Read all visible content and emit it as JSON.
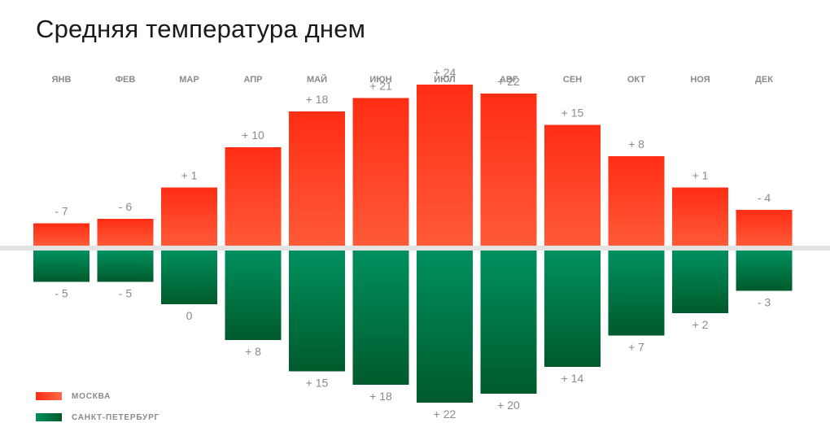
{
  "title": "Средняя температура днем",
  "colors": {
    "moscow_top": "#ff2d14",
    "moscow_bottom": "#ff5a38",
    "spb_top": "#00905e",
    "spb_bottom": "#005a2c",
    "axis": "#e3e3e3",
    "label": "#8a8a8a"
  },
  "legend": [
    {
      "name": "МОСКВА",
      "series": "moscow"
    },
    {
      "name": "САНКТ-ПЕТЕРБУРГ",
      "series": "spb"
    }
  ],
  "chart_data": {
    "type": "bar",
    "title": "Средняя температура днем",
    "categories": [
      "ЯНВ",
      "ФЕВ",
      "МАР",
      "АПР",
      "МАЙ",
      "ИЮН",
      "ИЮЛ",
      "АВГ",
      "СЕН",
      "ОКТ",
      "НОЯ",
      "ДЕК"
    ],
    "series": [
      {
        "name": "МОСКВА",
        "key": "moscow",
        "values": [
          -7,
          -6,
          1,
          10,
          18,
          21,
          24,
          22,
          15,
          8,
          1,
          -4
        ],
        "labels": [
          "- 7",
          "- 6",
          "+ 1",
          "+ 10",
          "+ 18",
          "+ 21",
          "+ 24",
          "+ 22",
          "+ 15",
          "+ 8",
          "+ 1",
          "- 4"
        ]
      },
      {
        "name": "САНКТ-ПЕТЕРБУРГ",
        "key": "spb",
        "values": [
          -5,
          -5,
          0,
          8,
          15,
          18,
          22,
          20,
          14,
          7,
          2,
          -3
        ],
        "labels": [
          "- 5",
          "- 5",
          "0",
          "+ 8",
          "+ 15",
          "+ 18",
          "+ 22",
          "+ 20",
          "+ 14",
          "+ 7",
          "+ 2",
          "- 3"
        ]
      }
    ],
    "layout_note": "mirrored bars: Moscow above baseline, St. Petersburg below",
    "legend_position": "bottom-left",
    "grid": false
  }
}
